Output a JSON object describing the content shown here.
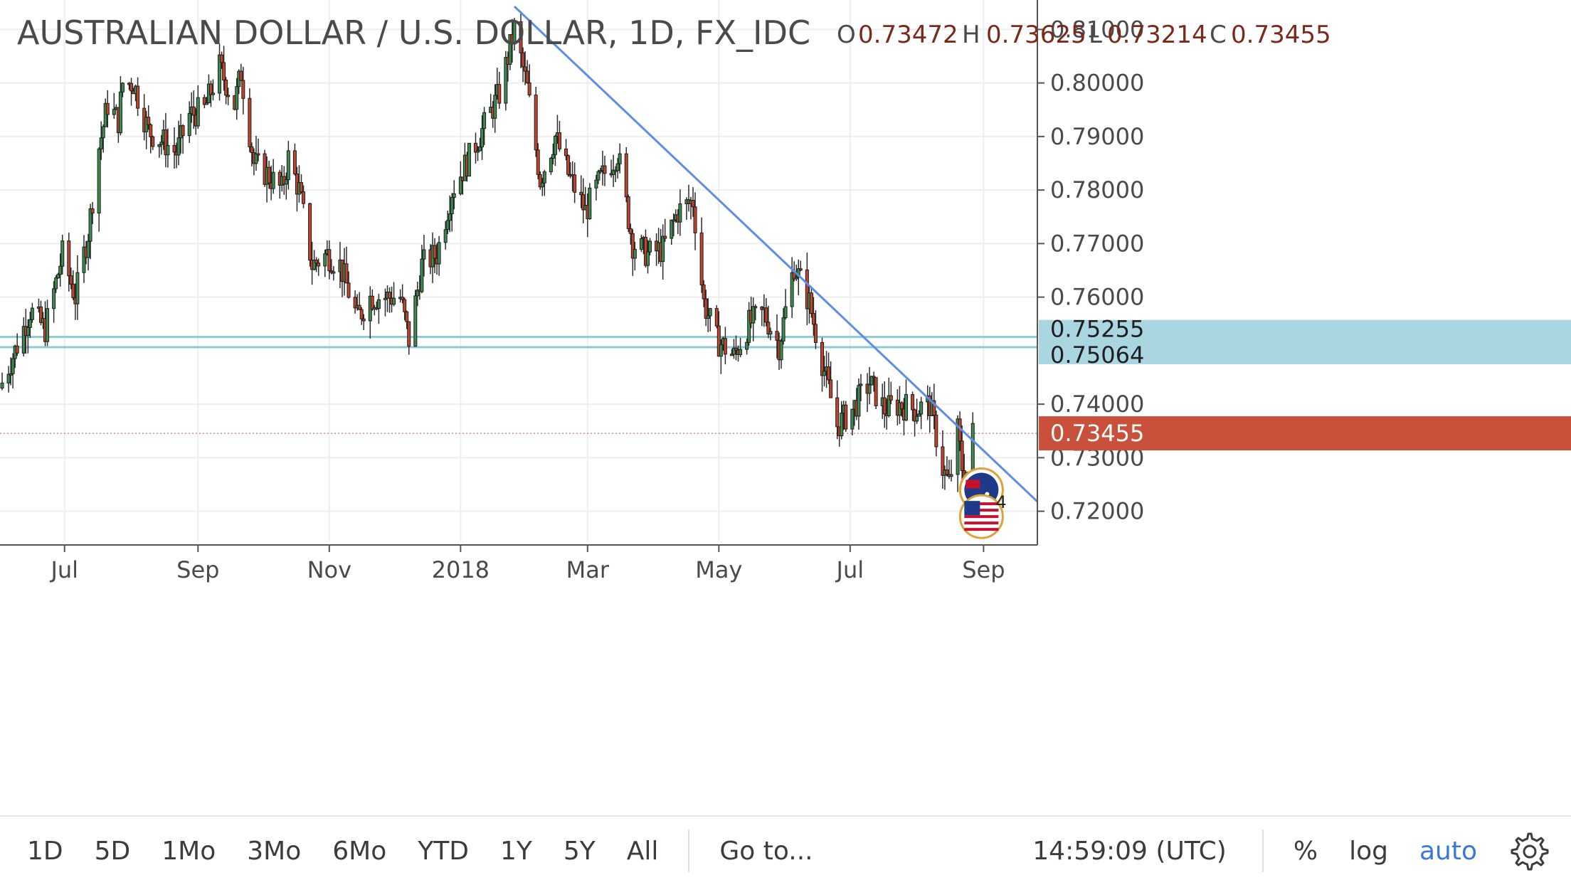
{
  "header": {
    "title": "AUSTRALIAN DOLLAR / U.S. DOLLAR, 1D, FX_IDC",
    "ohlc": [
      {
        "key": "O",
        "value": "0.73472"
      },
      {
        "key": "H",
        "value": "0.73625"
      },
      {
        "key": "L",
        "value": "0.73214"
      },
      {
        "key": "C",
        "value": "0.73455"
      }
    ]
  },
  "colors": {
    "up": "#3d8b4f",
    "down": "#c3442c",
    "wick": "#2c2c2c",
    "trendline": "#5b8ee6",
    "hline": "#8fc9d6",
    "hline_tag": "#a9d6e1",
    "last_price_tag": "#c9503b",
    "grid": "#eeeeee"
  },
  "chart_data": {
    "type": "candlestick",
    "symbol": "AUDUSD",
    "interval": "1D",
    "ylim": [
      0.7145,
      0.8155
    ],
    "y_ticks": [
      "0.81000",
      "0.80000",
      "0.79000",
      "0.78000",
      "0.77000",
      "0.76000",
      "0.74000",
      "0.73000",
      "0.72000"
    ],
    "x_ticks": [
      {
        "label": "Jul",
        "date": "2017-07-01"
      },
      {
        "label": "Sep",
        "date": "2017-09-01"
      },
      {
        "label": "Nov",
        "date": "2017-11-01"
      },
      {
        "label": "2018",
        "date": "2018-01-01"
      },
      {
        "label": "Mar",
        "date": "2018-03-01"
      },
      {
        "label": "May",
        "date": "2018-05-01"
      },
      {
        "label": "Jul",
        "date": "2018-07-01"
      },
      {
        "label": "Sep",
        "date": "2018-09-01"
      }
    ],
    "xlim": [
      "2017-06-01",
      "2018-09-26"
    ],
    "close_path": [
      [
        "2017-06-01",
        0.743
      ],
      [
        "2017-06-10",
        0.752
      ],
      [
        "2017-06-15",
        0.7575
      ],
      [
        "2017-06-22",
        0.754
      ],
      [
        "2017-06-30",
        0.768
      ],
      [
        "2017-07-06",
        0.76
      ],
      [
        "2017-07-12",
        0.772
      ],
      [
        "2017-07-17",
        0.788
      ],
      [
        "2017-07-21",
        0.796
      ],
      [
        "2017-07-26",
        0.793
      ],
      [
        "2017-07-28",
        0.8
      ],
      [
        "2017-08-02",
        0.8
      ],
      [
        "2017-08-09",
        0.791
      ],
      [
        "2017-08-16",
        0.789
      ],
      [
        "2017-08-22",
        0.787
      ],
      [
        "2017-08-28",
        0.794
      ],
      [
        "2017-09-04",
        0.795
      ],
      [
        "2017-09-11",
        0.803
      ],
      [
        "2017-09-18",
        0.796
      ],
      [
        "2017-09-21",
        0.802
      ],
      [
        "2017-09-27",
        0.785
      ],
      [
        "2017-10-03",
        0.783
      ],
      [
        "2017-10-10",
        0.78
      ],
      [
        "2017-10-13",
        0.786
      ],
      [
        "2017-10-18",
        0.78
      ],
      [
        "2017-10-24",
        0.766
      ],
      [
        "2017-10-31",
        0.768
      ],
      [
        "2017-11-06",
        0.766
      ],
      [
        "2017-11-14",
        0.756
      ],
      [
        "2017-11-20",
        0.76
      ],
      [
        "2017-11-27",
        0.76
      ],
      [
        "2017-12-04",
        0.76
      ],
      [
        "2017-12-08",
        0.752
      ],
      [
        "2017-12-14",
        0.766
      ],
      [
        "2017-12-21",
        0.768
      ],
      [
        "2017-12-28",
        0.78
      ],
      [
        "2018-01-05",
        0.786
      ],
      [
        "2018-01-12",
        0.792
      ],
      [
        "2018-01-19",
        0.798
      ],
      [
        "2018-01-26",
        0.81
      ],
      [
        "2018-02-01",
        0.799
      ],
      [
        "2018-02-07",
        0.782
      ],
      [
        "2018-02-14",
        0.79
      ],
      [
        "2018-02-20",
        0.783
      ],
      [
        "2018-02-28",
        0.776
      ],
      [
        "2018-03-07",
        0.782
      ],
      [
        "2018-03-15",
        0.787
      ],
      [
        "2018-03-22",
        0.77
      ],
      [
        "2018-03-29",
        0.768
      ],
      [
        "2018-04-05",
        0.769
      ],
      [
        "2018-04-12",
        0.776
      ],
      [
        "2018-04-19",
        0.778
      ],
      [
        "2018-04-24",
        0.759
      ],
      [
        "2018-04-30",
        0.752
      ],
      [
        "2018-05-08",
        0.749
      ],
      [
        "2018-05-15",
        0.755
      ],
      [
        "2018-05-22",
        0.757
      ],
      [
        "2018-05-29",
        0.751
      ],
      [
        "2018-06-05",
        0.766
      ],
      [
        "2018-06-12",
        0.759
      ],
      [
        "2018-06-18",
        0.748
      ],
      [
        "2018-06-25",
        0.736
      ],
      [
        "2018-07-02",
        0.739
      ],
      [
        "2018-07-10",
        0.744
      ],
      [
        "2018-07-17",
        0.739
      ],
      [
        "2018-07-24",
        0.74
      ],
      [
        "2018-07-31",
        0.739
      ],
      [
        "2018-08-07",
        0.74
      ],
      [
        "2018-08-13",
        0.728
      ],
      [
        "2018-08-16",
        0.725
      ],
      [
        "2018-08-20",
        0.735
      ],
      [
        "2018-08-23",
        0.725
      ],
      [
        "2018-08-27",
        0.7346
      ]
    ],
    "horizontal_levels": [
      {
        "label": "0.75255",
        "value": 0.75255
      },
      {
        "label": "0.75064",
        "value": 0.75064
      }
    ],
    "last_price": {
      "label": "0.73455",
      "value": 0.73455
    },
    "trendline": {
      "from": {
        "date": "2018-01-26",
        "value": 0.8143
      },
      "to": {
        "date": "2018-09-26",
        "value": 0.7218
      }
    },
    "event_markers": [
      {
        "name": "australia-flag",
        "date": "2018-08-31",
        "value": 0.724
      },
      {
        "name": "us-flag",
        "date": "2018-08-31",
        "value": 0.719,
        "count": "4"
      }
    ]
  },
  "bottom_bar": {
    "ranges": [
      "1D",
      "5D",
      "1Mo",
      "3Mo",
      "6Mo",
      "YTD",
      "1Y",
      "5Y",
      "All"
    ],
    "goto": "Go to...",
    "clock": "14:59:09 (UTC)",
    "percent": "%",
    "log": "log",
    "auto": "auto"
  }
}
